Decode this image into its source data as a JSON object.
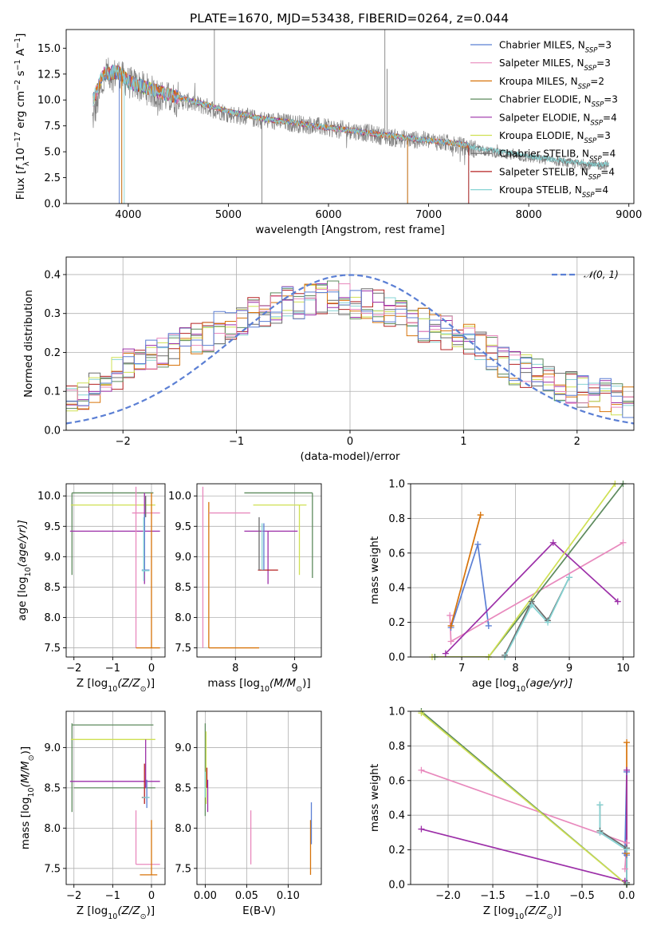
{
  "figure": {
    "title": "PLATE=1670, MJD=53438, FIBERID=0264, z=0.044"
  },
  "series_styles": [
    {
      "name": "Chabrier MILES, N",
      "sub": "SSP",
      "suffix": "=3",
      "color": "#5b7fd4"
    },
    {
      "name": "Salpeter MILES, N",
      "sub": "SSP",
      "suffix": "=3",
      "color": "#e889bd"
    },
    {
      "name": "Kroupa MILES, N",
      "sub": "SSP",
      "suffix": "=2",
      "color": "#d7730a"
    },
    {
      "name": "Chabrier ELODIE, N",
      "sub": "SSP",
      "suffix": "=3",
      "color": "#5d8a5d"
    },
    {
      "name": "Salpeter ELODIE, N",
      "sub": "SSP",
      "suffix": "=4",
      "color": "#9c2fa8"
    },
    {
      "name": "Kroupa ELODIE, N",
      "sub": "SSP",
      "suffix": "=3",
      "color": "#cfe053"
    },
    {
      "name": "Chabrier STELIB, N",
      "sub": "SSP",
      "suffix": "=4",
      "color": "#6b6b6b"
    },
    {
      "name": "Salpeter STELIB, N",
      "sub": "SSP",
      "suffix": "=4",
      "color": "#b52222"
    },
    {
      "name": "Kroupa STELIB, N",
      "sub": "SSP",
      "suffix": "=4",
      "color": "#86d4d4"
    }
  ],
  "chart_data": [
    {
      "id": "spectrum",
      "type": "line",
      "xlabel": "wavelength [Angstrom, rest frame]",
      "ylabel_parts": [
        "Flux [",
        "f",
        "λ",
        "10",
        "−17",
        " erg cm",
        "−2",
        " s",
        "−1",
        " A",
        "−1",
        "]"
      ],
      "xlim": [
        3380,
        9050
      ],
      "ylim": [
        0,
        16.8
      ],
      "xticks": [
        4000,
        5000,
        6000,
        7000,
        8000,
        9000
      ],
      "yticks": [
        0.0,
        2.5,
        5.0,
        7.5,
        10.0,
        12.5,
        15.0
      ],
      "observed": {
        "color": "#808080",
        "anchors": [
          [
            3640,
            8.0
          ],
          [
            3700,
            10.0
          ],
          [
            3780,
            12.5
          ],
          [
            3900,
            12.5
          ],
          [
            4000,
            11.7
          ],
          [
            4100,
            11.4
          ],
          [
            4200,
            11.0
          ],
          [
            4300,
            10.5
          ],
          [
            4400,
            10.2
          ],
          [
            4600,
            9.8
          ],
          [
            4800,
            9.3
          ],
          [
            5000,
            8.7
          ],
          [
            5200,
            8.3
          ],
          [
            5400,
            8.0
          ],
          [
            5600,
            7.8
          ],
          [
            5800,
            7.6
          ],
          [
            6000,
            7.3
          ],
          [
            6200,
            7.1
          ],
          [
            6400,
            6.8
          ],
          [
            6600,
            6.4
          ],
          [
            6800,
            6.2
          ],
          [
            7000,
            6.1
          ],
          [
            7200,
            5.8
          ],
          [
            7400,
            5.4
          ],
          [
            7600,
            5.0
          ],
          [
            7800,
            4.7
          ],
          [
            8000,
            4.4
          ],
          [
            8200,
            4.2
          ],
          [
            8400,
            3.9
          ],
          [
            8600,
            3.7
          ],
          [
            8800,
            3.7
          ]
        ],
        "spikes": [
          [
            3935,
            0.0
          ],
          [
            4860,
            17.0
          ],
          [
            5335,
            0.0
          ],
          [
            6563,
            17.0
          ],
          [
            6585,
            13.0
          ],
          [
            6790,
            0.0
          ],
          [
            7400,
            0.0
          ]
        ]
      },
      "model": {
        "anchors": [
          [
            3650,
            10.0
          ],
          [
            3750,
            12.5
          ],
          [
            3900,
            12.7
          ],
          [
            4000,
            11.8
          ],
          [
            4200,
            11.1
          ],
          [
            4400,
            10.5
          ],
          [
            4600,
            10.0
          ],
          [
            4800,
            9.5
          ],
          [
            5000,
            8.9
          ],
          [
            5200,
            8.5
          ],
          [
            5400,
            8.1
          ],
          [
            5600,
            7.9
          ],
          [
            5800,
            7.6
          ],
          [
            6000,
            7.3
          ],
          [
            6200,
            7.1
          ],
          [
            6400,
            6.8
          ],
          [
            6600,
            6.6
          ],
          [
            6800,
            6.3
          ],
          [
            7000,
            6.1
          ],
          [
            7200,
            5.9
          ],
          [
            7400,
            5.6
          ]
        ],
        "extended_anchors": [
          [
            7400,
            5.5
          ],
          [
            7600,
            5.2
          ],
          [
            7800,
            4.9
          ],
          [
            8000,
            4.6
          ],
          [
            8200,
            4.3
          ],
          [
            8400,
            4.1
          ],
          [
            8600,
            3.8
          ],
          [
            8800,
            3.8
          ]
        ]
      }
    },
    {
      "id": "residuals",
      "type": "step",
      "xlabel": "(data-model)/error",
      "ylabel": "Normed distribution",
      "xlim": [
        -2.5,
        2.5
      ],
      "ylim": [
        0,
        0.445
      ],
      "xticks": [
        -2,
        -1,
        0,
        1,
        2
      ],
      "yticks": [
        0.0,
        0.1,
        0.2,
        0.3,
        0.4
      ],
      "bin_width": 0.1,
      "envelope": [
        0.08,
        0.09,
        0.11,
        0.13,
        0.15,
        0.17,
        0.19,
        0.2,
        0.2,
        0.21,
        0.22,
        0.23,
        0.24,
        0.26,
        0.27,
        0.28,
        0.3,
        0.31,
        0.32,
        0.33,
        0.33,
        0.34,
        0.34,
        0.35,
        0.34,
        0.33,
        0.32,
        0.32,
        0.31,
        0.3,
        0.28,
        0.27,
        0.26,
        0.25,
        0.24,
        0.23,
        0.21,
        0.2,
        0.18,
        0.16,
        0.15,
        0.14,
        0.13,
        0.12,
        0.11,
        0.1,
        0.1,
        0.09,
        0.08,
        0.07,
        0.07,
        0.06,
        0.06,
        0.05,
        0.05,
        0.04
      ],
      "gaussian_label": "𝒩(0, 1)",
      "gaussian_color": "#5b7fd4"
    },
    {
      "id": "age-vs-Z",
      "type": "errorbar",
      "xlabel_parts": [
        "Z [log",
        "10",
        "(Z/Z",
        "⊙",
        ")]"
      ],
      "ylabel_parts": [
        "age  [log",
        "10",
        "(age/yr)]"
      ],
      "xlim": [
        -2.2,
        0.35
      ],
      "ylim": [
        7.35,
        10.2
      ],
      "xticks": [
        -2,
        -1,
        0
      ],
      "yticks": [
        7.5,
        8.0,
        8.5,
        9.0,
        9.5,
        10.0
      ],
      "segments": [
        [
          -2.05,
          10.05,
          0.05,
          10.05,
          3
        ],
        [
          -2.05,
          8.7,
          -2.05,
          10.05,
          3
        ],
        [
          -2.08,
          9.85,
          0.1,
          9.85,
          5
        ],
        [
          -2.1,
          9.42,
          0.22,
          9.42,
          4
        ],
        [
          -0.5,
          9.72,
          0.22,
          9.72,
          1
        ],
        [
          -0.4,
          7.5,
          -0.4,
          10.15,
          1
        ],
        [
          -0.4,
          7.5,
          0.22,
          7.5,
          2
        ],
        [
          0.0,
          7.5,
          0.0,
          10.05,
          2
        ],
        [
          -0.18,
          8.55,
          -0.18,
          10.05,
          4
        ],
        [
          -0.25,
          8.78,
          -0.05,
          8.78,
          0
        ],
        [
          -0.18,
          8.75,
          -0.18,
          9.7,
          0
        ],
        [
          -0.15,
          9.65,
          -0.15,
          10.0,
          6
        ],
        [
          -0.25,
          8.77,
          -0.05,
          8.77,
          8
        ],
        [
          -0.2,
          8.6,
          -0.2,
          9.65,
          8
        ]
      ]
    },
    {
      "id": "age-vs-mass",
      "type": "errorbar",
      "xlabel_parts": [
        "mass [log",
        "10",
        "(M/M",
        "⊙",
        ")]"
      ],
      "ylabel_parts": [],
      "xlim": [
        7.35,
        9.45
      ],
      "ylim": [
        7.35,
        10.2
      ],
      "xticks": [
        8,
        9
      ],
      "yticks": [
        7.5,
        8.0,
        8.5,
        9.0,
        9.5,
        10.0
      ],
      "segments": [
        [
          7.45,
          7.5,
          7.45,
          10.15,
          1
        ],
        [
          7.55,
          7.5,
          8.4,
          7.5,
          2
        ],
        [
          7.55,
          7.5,
          7.55,
          9.9,
          2
        ],
        [
          7.55,
          9.72,
          8.25,
          9.72,
          1
        ],
        [
          8.15,
          10.05,
          9.3,
          10.05,
          3
        ],
        [
          9.3,
          8.65,
          9.3,
          10.05,
          3
        ],
        [
          8.3,
          9.85,
          9.2,
          9.85,
          5
        ],
        [
          9.08,
          8.7,
          9.08,
          9.85,
          5
        ],
        [
          8.15,
          9.42,
          9.05,
          9.42,
          4
        ],
        [
          8.55,
          8.55,
          8.55,
          9.42,
          4
        ],
        [
          8.38,
          8.78,
          8.72,
          8.78,
          7
        ],
        [
          8.4,
          8.78,
          8.4,
          9.65,
          6
        ],
        [
          8.45,
          8.78,
          8.45,
          9.55,
          8
        ],
        [
          8.48,
          8.78,
          8.48,
          9.55,
          0
        ]
      ]
    },
    {
      "id": "weight-vs-age",
      "type": "line",
      "xlabel_parts": [
        "age  [log",
        "10",
        "(age/yr)]"
      ],
      "ylabel": "mass weight",
      "xlim": [
        6.05,
        10.2
      ],
      "ylim": [
        0,
        1.0
      ],
      "xticks": [
        7,
        8,
        9,
        10
      ],
      "yticks": [
        0.0,
        0.2,
        0.4,
        0.6,
        0.8,
        1.0
      ],
      "series": [
        {
          "style": 0,
          "x": [
            6.8,
            7.3,
            7.5
          ],
          "y": [
            0.17,
            0.65,
            0.18
          ]
        },
        {
          "style": 1,
          "x": [
            6.78,
            6.8,
            10.0
          ],
          "y": [
            0.24,
            0.09,
            0.66
          ]
        },
        {
          "style": 2,
          "x": [
            6.8,
            7.35
          ],
          "y": [
            0.18,
            0.82
          ]
        },
        {
          "style": 3,
          "x": [
            6.5,
            7.5,
            10.0
          ],
          "y": [
            0.0,
            0.0,
            1.0
          ]
        },
        {
          "style": 4,
          "x": [
            6.7,
            8.7,
            9.9
          ],
          "y": [
            0.02,
            0.66,
            0.32
          ]
        },
        {
          "style": 5,
          "x": [
            6.45,
            7.5,
            9.85
          ],
          "y": [
            0.0,
            0.0,
            1.0
          ]
        },
        {
          "style": 6,
          "x": [
            7.8,
            8.3,
            8.6,
            9.0
          ],
          "y": [
            0.01,
            0.32,
            0.21,
            0.46
          ]
        },
        {
          "style": 8,
          "x": [
            7.8,
            8.3,
            8.6,
            9.0
          ],
          "y": [
            0.0,
            0.3,
            0.2,
            0.46
          ]
        }
      ]
    },
    {
      "id": "mass-vs-Z",
      "type": "errorbar",
      "xlabel_parts": [
        "Z [log",
        "10",
        "(Z/Z",
        "⊙",
        ")]"
      ],
      "ylabel_parts": [
        "mass [log",
        "10",
        "(M/M",
        "⊙",
        ")]"
      ],
      "xlim": [
        -2.2,
        0.35
      ],
      "ylim": [
        7.3,
        9.45
      ],
      "xticks": [
        -2,
        -1,
        0
      ],
      "yticks": [
        7.5,
        8.0,
        8.5,
        9.0
      ],
      "segments": [
        [
          -2.05,
          9.28,
          0.05,
          9.28,
          3
        ],
        [
          -2.05,
          8.2,
          -2.05,
          9.3,
          3
        ],
        [
          -2.08,
          9.1,
          0.1,
          9.1,
          5
        ],
        [
          -2.1,
          8.58,
          0.22,
          8.58,
          4
        ],
        [
          -2.0,
          8.5,
          0.1,
          8.5,
          3
        ],
        [
          -0.4,
          7.55,
          0.22,
          7.55,
          1
        ],
        [
          -0.4,
          7.55,
          -0.4,
          8.22,
          1
        ],
        [
          -0.3,
          7.42,
          0.15,
          7.42,
          2
        ],
        [
          0.0,
          7.42,
          0.0,
          8.1,
          2
        ],
        [
          -0.15,
          8.5,
          -0.15,
          9.1,
          4
        ],
        [
          -0.25,
          8.38,
          -0.05,
          8.38,
          6
        ],
        [
          -0.18,
          8.3,
          -0.18,
          8.8,
          7
        ],
        [
          -0.12,
          8.25,
          -0.12,
          8.6,
          0
        ],
        [
          -0.22,
          8.38,
          -0.05,
          8.38,
          8
        ]
      ]
    },
    {
      "id": "mass-vs-EBV",
      "type": "errorbar",
      "xlabel": "E(B-V)",
      "ylabel_parts": [],
      "xlim": [
        -0.01,
        0.14
      ],
      "ylim": [
        7.3,
        9.45
      ],
      "xticks": [
        0.0,
        0.05,
        0.1
      ],
      "yticks": [
        7.5,
        8.0,
        8.5,
        9.0
      ],
      "segments": [
        [
          0.0,
          8.15,
          0.0,
          9.3,
          3
        ],
        [
          0.001,
          8.3,
          0.001,
          9.2,
          5
        ],
        [
          0.002,
          8.5,
          0.002,
          8.75,
          7
        ],
        [
          0.003,
          8.2,
          0.003,
          8.6,
          4
        ],
        [
          0.0,
          8.38,
          0.0,
          8.7,
          8
        ],
        [
          0.055,
          7.55,
          0.055,
          8.22,
          1
        ],
        [
          0.127,
          7.42,
          0.127,
          8.1,
          2
        ],
        [
          0.128,
          7.8,
          0.128,
          8.32,
          0
        ]
      ]
    },
    {
      "id": "weight-vs-Z",
      "type": "line",
      "xlabel_parts": [
        "Z [log",
        "10",
        "(Z/Z",
        "⊙",
        ")]"
      ],
      "ylabel": "mass weight",
      "xlim": [
        -2.42,
        0.08
      ],
      "ylim": [
        0,
        1.0
      ],
      "xticks": [
        -2.0,
        -1.5,
        -1.0,
        -0.5,
        0.0
      ],
      "yticks": [
        0.0,
        0.2,
        0.4,
        0.6,
        0.8,
        1.0
      ],
      "series": [
        {
          "style": 0,
          "x": [
            0.0,
            0.0,
            -0.02
          ],
          "y": [
            0.17,
            0.65,
            0.18
          ]
        },
        {
          "style": 1,
          "x": [
            -2.3,
            0.0,
            -0.02
          ],
          "y": [
            0.66,
            0.24,
            0.09
          ]
        },
        {
          "style": 2,
          "x": [
            0.0,
            0.0
          ],
          "y": [
            0.18,
            0.82
          ]
        },
        {
          "style": 3,
          "x": [
            -2.3,
            0.0,
            0.0
          ],
          "y": [
            1.0,
            0.0,
            0.0
          ]
        },
        {
          "style": 4,
          "x": [
            -2.3,
            -0.02,
            0.0,
            0.0
          ],
          "y": [
            0.32,
            0.02,
            0.0,
            0.66
          ]
        },
        {
          "style": 5,
          "x": [
            -2.3,
            0.0,
            0.0
          ],
          "y": [
            0.99,
            0.0,
            0.0
          ]
        },
        {
          "style": 6,
          "x": [
            -0.3,
            -0.3,
            0.0,
            0.0
          ],
          "y": [
            0.46,
            0.31,
            0.21,
            0.01
          ]
        },
        {
          "style": 8,
          "x": [
            -0.3,
            -0.3,
            0.0,
            0.0
          ],
          "y": [
            0.46,
            0.3,
            0.2,
            0.0
          ]
        }
      ]
    }
  ]
}
